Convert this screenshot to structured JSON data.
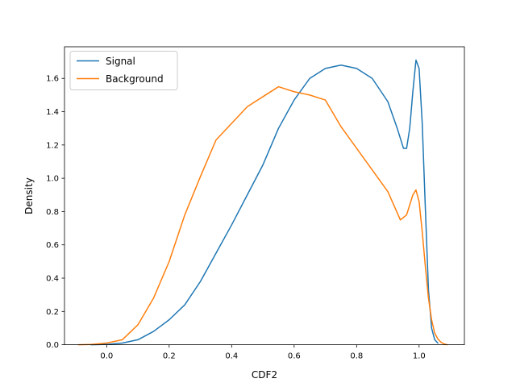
{
  "chart_data": {
    "type": "line",
    "title": "",
    "xlabel": "CDF2",
    "ylabel": "Density",
    "xlim": [
      -0.135,
      1.145
    ],
    "ylim": [
      0.0,
      1.79
    ],
    "xticks": [
      0.0,
      0.2,
      0.4,
      0.6,
      0.8,
      1.0
    ],
    "xtick_labels": [
      "0.0",
      "0.2",
      "0.4",
      "0.6",
      "0.8",
      "1.0"
    ],
    "yticks": [
      0.0,
      0.2,
      0.4,
      0.6,
      0.8,
      1.0,
      1.2,
      1.4,
      1.6
    ],
    "ytick_labels": [
      "0.0",
      "0.2",
      "0.4",
      "0.6",
      "0.8",
      "1.0",
      "1.2",
      "1.4",
      "1.6"
    ],
    "grid": false,
    "legend_position": "top-left",
    "series": [
      {
        "name": "Signal",
        "color": "#1f77b4",
        "x": [
          -0.05,
          0.0,
          0.05,
          0.1,
          0.15,
          0.2,
          0.25,
          0.3,
          0.35,
          0.4,
          0.45,
          0.5,
          0.55,
          0.6,
          0.65,
          0.7,
          0.75,
          0.8,
          0.85,
          0.9,
          0.93,
          0.95,
          0.96,
          0.97,
          0.98,
          0.99,
          1.0,
          1.01,
          1.02,
          1.03,
          1.04,
          1.05,
          1.06
        ],
        "y": [
          0.0,
          0.002,
          0.01,
          0.03,
          0.08,
          0.15,
          0.24,
          0.38,
          0.55,
          0.72,
          0.9,
          1.08,
          1.3,
          1.47,
          1.6,
          1.66,
          1.68,
          1.66,
          1.6,
          1.46,
          1.3,
          1.18,
          1.18,
          1.3,
          1.52,
          1.71,
          1.66,
          1.33,
          0.82,
          0.33,
          0.1,
          0.03,
          0.01
        ]
      },
      {
        "name": "Background",
        "color": "#ff7f0e",
        "x": [
          -0.09,
          -0.05,
          0.0,
          0.05,
          0.1,
          0.15,
          0.2,
          0.25,
          0.3,
          0.35,
          0.4,
          0.45,
          0.5,
          0.55,
          0.6,
          0.65,
          0.7,
          0.75,
          0.8,
          0.85,
          0.9,
          0.94,
          0.96,
          0.98,
          0.99,
          1.0,
          1.01,
          1.02,
          1.03,
          1.04,
          1.05,
          1.06,
          1.07,
          1.08,
          1.09
        ],
        "y": [
          0.0,
          0.002,
          0.01,
          0.03,
          0.12,
          0.28,
          0.5,
          0.78,
          1.01,
          1.23,
          1.33,
          1.43,
          1.49,
          1.55,
          1.52,
          1.5,
          1.47,
          1.31,
          1.18,
          1.05,
          0.92,
          0.75,
          0.78,
          0.9,
          0.93,
          0.86,
          0.68,
          0.47,
          0.28,
          0.15,
          0.07,
          0.035,
          0.015,
          0.005,
          0.0
        ]
      }
    ]
  }
}
